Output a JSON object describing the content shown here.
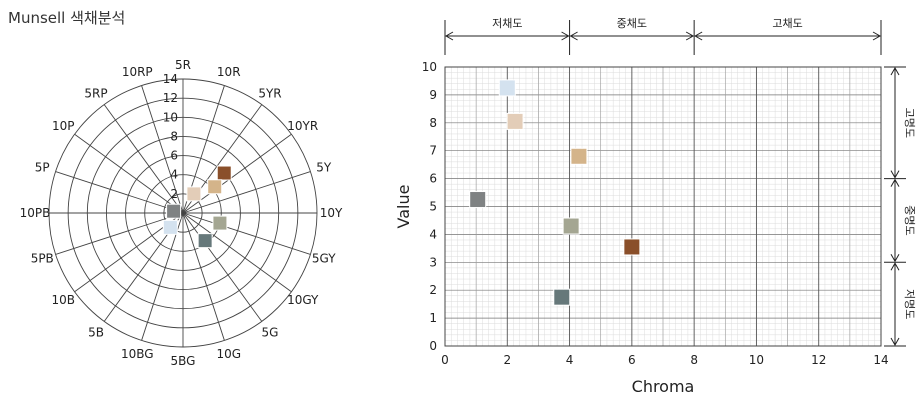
{
  "page_title": "Munsell 색채분석",
  "chart_data": [
    {
      "type": "polar-scatter",
      "hue_labels": [
        "5R",
        "10R",
        "5YR",
        "10YR",
        "5Y",
        "10Y",
        "5GY",
        "10GY",
        "5G",
        "10G",
        "5BG",
        "10BG",
        "5B",
        "10B",
        "5PB",
        "10PB",
        "5P",
        "10P",
        "5RP",
        "10RP"
      ],
      "radial_ticks": [
        "0",
        "2",
        "4",
        "6",
        "8",
        "10",
        "12",
        "14"
      ],
      "radial_max": 14,
      "points": [
        {
          "hue_index": 2.55,
          "chroma": 6.0,
          "color": "#8a4f2a"
        },
        {
          "hue_index": 2.8,
          "chroma": 4.3,
          "color": "#d4b48a"
        },
        {
          "hue_index": 1.65,
          "chroma": 2.3,
          "color": "#e3cdb8"
        },
        {
          "hue_index": 5.85,
          "chroma": 4.0,
          "color": "#a4a692"
        },
        {
          "hue_index": 7.85,
          "chroma": 3.7,
          "color": "#66787a"
        },
        {
          "hue_index": 12.3,
          "chroma": 2.0,
          "color": "#d4e2ef"
        },
        {
          "hue_index": 15.6,
          "chroma": 1.0,
          "color": "#7f8283"
        }
      ]
    },
    {
      "type": "scatter",
      "xlabel": "Chroma",
      "ylabel": "Value",
      "xlim": [
        0,
        14
      ],
      "ylim": [
        0,
        10
      ],
      "x_ticks": [
        "0",
        "2",
        "4",
        "6",
        "8",
        "10",
        "12",
        "14"
      ],
      "y_ticks": [
        "0",
        "1",
        "2",
        "3",
        "4",
        "5",
        "6",
        "7",
        "8",
        "9",
        "10"
      ],
      "grid": true,
      "chroma_bands": [
        {
          "label": "저채도",
          "from": 0,
          "to": 4
        },
        {
          "label": "중채도",
          "from": 4,
          "to": 8
        },
        {
          "label": "고채도",
          "from": 8,
          "to": 14
        }
      ],
      "value_bands": [
        {
          "label": "고명도",
          "from": 6,
          "to": 10
        },
        {
          "label": "중명도",
          "from": 3,
          "to": 6
        },
        {
          "label": "저명도",
          "from": 0,
          "to": 3
        }
      ],
      "points": [
        {
          "x": 2.0,
          "y": 9.25,
          "color": "#d4e2ef"
        },
        {
          "x": 2.25,
          "y": 8.05,
          "color": "#e3cdb8"
        },
        {
          "x": 4.3,
          "y": 6.8,
          "color": "#d4b48a"
        },
        {
          "x": 1.05,
          "y": 5.25,
          "color": "#7f8283"
        },
        {
          "x": 4.05,
          "y": 4.3,
          "color": "#a4a692"
        },
        {
          "x": 6.0,
          "y": 3.55,
          "color": "#8a4f2a"
        },
        {
          "x": 3.75,
          "y": 1.75,
          "color": "#66787a"
        }
      ]
    }
  ]
}
